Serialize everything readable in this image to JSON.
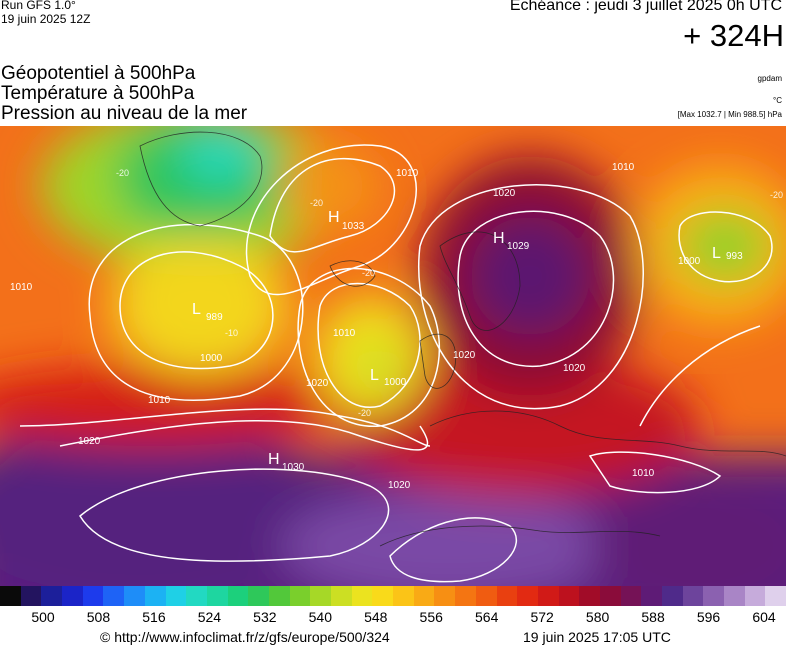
{
  "header": {
    "run_line1": "Run GFS 1.0°",
    "run_line2": "19 juin 2025 12Z",
    "echeance": "Echéance : jeudi 3 juillet 2025 0h UTC",
    "horizon": "+ 324H"
  },
  "titles": [
    "Géopotentiel à 500hPa",
    "Température à 500hPa",
    "Pression au niveau de la mer"
  ],
  "units": {
    "geopotential": "gpdam",
    "temperature": "°C",
    "pressure_range": "[Max 1032.7 | Min 988.5] hPa"
  },
  "map": {
    "pressure_centers": [
      {
        "type": "H",
        "value": "1033"
      },
      {
        "type": "H",
        "value": "1029"
      },
      {
        "type": "H",
        "value": "1030"
      },
      {
        "type": "L",
        "value": "989"
      },
      {
        "type": "L",
        "value": "1000"
      },
      {
        "type": "L",
        "value": "993"
      }
    ],
    "isobar_labels": [
      "1010",
      "1000",
      "1010",
      "1020",
      "1020",
      "1010",
      "1010",
      "1020",
      "1020",
      "1020",
      "1020",
      "1000",
      "1010",
      "1010"
    ],
    "isotherm_labels": [
      "-20",
      "-20",
      "-10",
      "-20",
      "-20",
      "-20"
    ]
  },
  "colorbar": {
    "colors": [
      "#0a0a0a",
      "#23145f",
      "#1c1f9a",
      "#1b24c8",
      "#1d3bec",
      "#1e63f6",
      "#1e8df8",
      "#1cb2f3",
      "#1fd0e6",
      "#22d9c2",
      "#1ed6a0",
      "#1cd07c",
      "#2ec85a",
      "#52c83a",
      "#7acf2c",
      "#a6d827",
      "#ccdf23",
      "#ebe31f",
      "#f9da1a",
      "#fbc417",
      "#f9aa15",
      "#f78f13",
      "#f47512",
      "#f05c11",
      "#e94010",
      "#e22a12",
      "#d11a17",
      "#bd111e",
      "#a10c28",
      "#8a0c3a",
      "#751256",
      "#5e1b76",
      "#4f2a8a",
      "#6d449c",
      "#8b61b0",
      "#a985c6",
      "#c6abdb",
      "#dfd0ec"
    ],
    "ticks": [
      "500",
      "508",
      "516",
      "524",
      "532",
      "540",
      "548",
      "556",
      "564",
      "572",
      "580",
      "588",
      "596",
      "604"
    ]
  },
  "footer": {
    "url": "© http://www.infoclimat.fr/z/gfs/europe/500/324",
    "date": "19 juin 2025 17:05 UTC"
  }
}
